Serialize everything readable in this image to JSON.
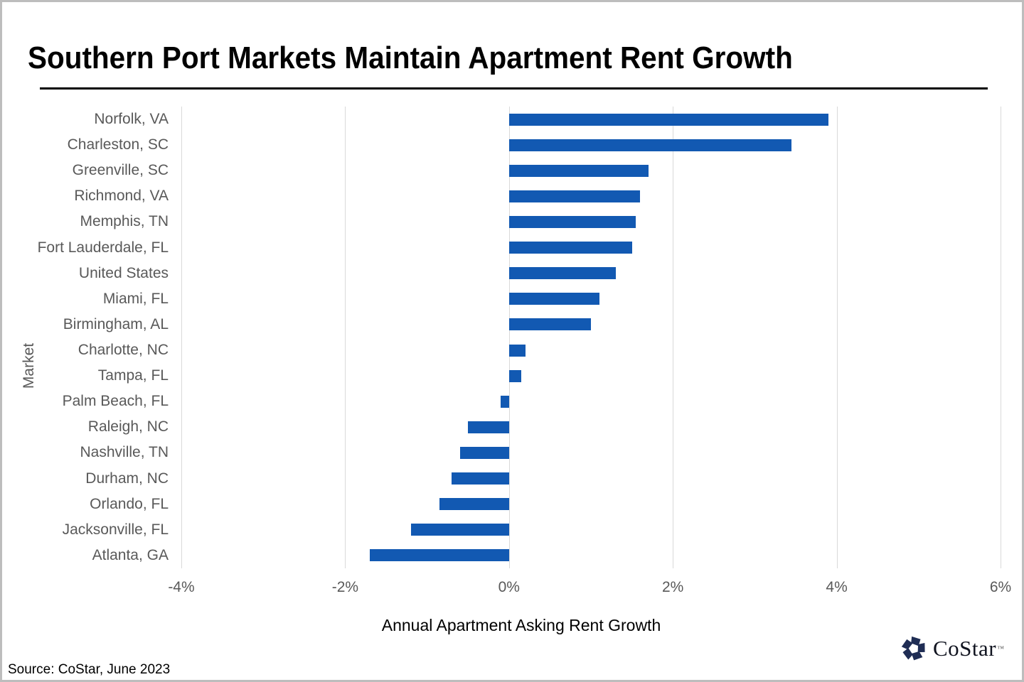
{
  "page": {
    "source_note": "Source: CoStar, June 2023"
  },
  "logo": {
    "name": "CoStar",
    "trademark": "™",
    "color": "#1f2d54"
  },
  "chart_data": {
    "type": "bar",
    "orientation": "horizontal",
    "title": "Southern Port Markets Maintain Apartment Rent Growth",
    "xlabel": "Annual Apartment Asking Rent Growth",
    "ylabel": "Market",
    "unit": "%",
    "xlim": [
      -4,
      6
    ],
    "grid": "vertical",
    "bar_color": "#1259b2",
    "gridline_color": "#d9d9d9",
    "label_color": "#595959",
    "x_ticks": [
      {
        "value": -4,
        "label": "-4%"
      },
      {
        "value": -2,
        "label": "-2%"
      },
      {
        "value": 0,
        "label": "0%"
      },
      {
        "value": 2,
        "label": "2%"
      },
      {
        "value": 4,
        "label": "4%"
      },
      {
        "value": 6,
        "label": "6%"
      }
    ],
    "categories": [
      "Norfolk, VA",
      "Charleston, SC",
      "Greenville, SC",
      "Richmond, VA",
      "Memphis, TN",
      "Fort Lauderdale, FL",
      "United States",
      "Miami, FL",
      "Birmingham, AL",
      "Charlotte, NC",
      "Tampa, FL",
      "Palm Beach, FL",
      "Raleigh, NC",
      "Nashville, TN",
      "Durham, NC",
      "Orlando, FL",
      "Jacksonville, FL",
      "Atlanta, GA"
    ],
    "values": [
      3.9,
      3.45,
      1.7,
      1.6,
      1.55,
      1.5,
      1.3,
      1.1,
      1.0,
      0.2,
      0.15,
      -0.1,
      -0.5,
      -0.6,
      -0.7,
      -0.85,
      -1.2,
      -1.7
    ]
  }
}
